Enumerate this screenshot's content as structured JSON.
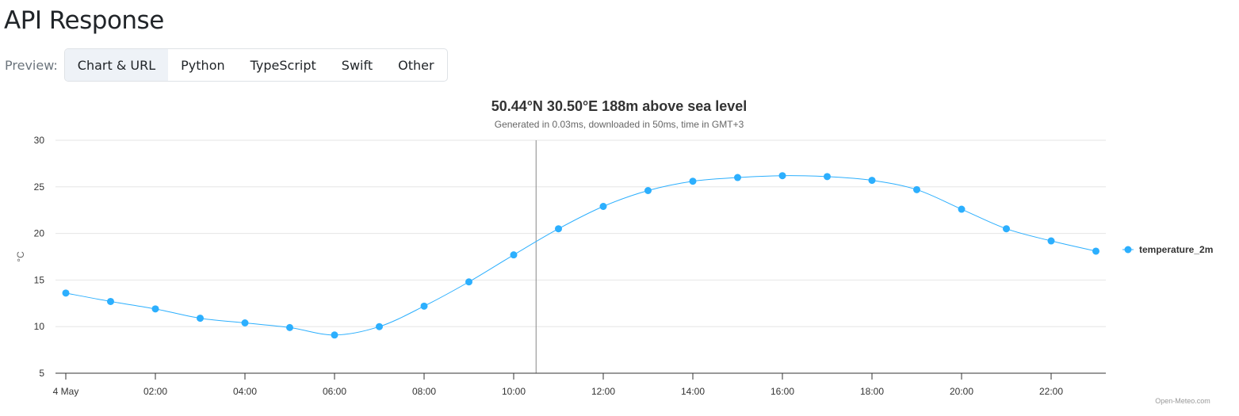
{
  "page": {
    "title": "API Response"
  },
  "preview": {
    "label": "Preview:",
    "tabs": [
      {
        "label": "Chart & URL",
        "active": true
      },
      {
        "label": "Python",
        "active": false
      },
      {
        "label": "TypeScript",
        "active": false
      },
      {
        "label": "Swift",
        "active": false
      },
      {
        "label": "Other",
        "active": false
      }
    ]
  },
  "credits": "Open-Meteo.com",
  "chart_data": {
    "type": "line",
    "title": "50.44°N 30.50°E 188m above sea level",
    "subtitle": "Generated in 0.03ms, downloaded in 50ms, time in GMT+3",
    "ylabel": "°C",
    "xlabel": "",
    "x_tick_labels": [
      "4 May",
      "02:00",
      "04:00",
      "06:00",
      "08:00",
      "10:00",
      "12:00",
      "14:00",
      "16:00",
      "18:00",
      "20:00",
      "22:00"
    ],
    "y_ticks": [
      5,
      10,
      15,
      20,
      25,
      30
    ],
    "ylim": [
      5,
      30
    ],
    "x_hours": [
      0,
      1,
      2,
      3,
      4,
      5,
      6,
      7,
      8,
      9,
      10,
      11,
      12,
      13,
      14,
      15,
      16,
      17,
      18,
      19,
      20,
      21,
      22,
      23
    ],
    "crosshair_hour": 10.5,
    "grid": true,
    "legend_position": "right",
    "series": [
      {
        "name": "temperature_2m",
        "color": "#2caffe",
        "values": [
          13.6,
          12.7,
          11.9,
          10.9,
          10.4,
          9.9,
          9.1,
          10.0,
          12.2,
          14.8,
          17.7,
          20.5,
          22.9,
          24.6,
          25.6,
          26.0,
          26.2,
          26.1,
          25.7,
          24.7,
          22.6,
          20.5,
          19.2,
          18.1
        ]
      }
    ]
  }
}
